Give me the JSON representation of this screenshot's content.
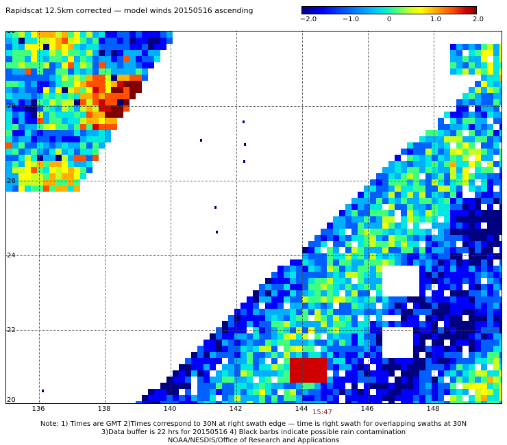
{
  "title": "Rapidscat 12.5km corrected — model winds 20150516 ascending",
  "colorbar": {
    "ticks": [
      "−2.0",
      "−1.0",
      "0",
      "1.0",
      "2.0"
    ],
    "range": [
      -2.0,
      2.0
    ]
  },
  "map": {
    "lon_range": [
      135,
      150
    ],
    "lat_range": [
      20,
      30
    ],
    "lat_labels": [
      "30",
      "28",
      "26",
      "24",
      "22",
      "20"
    ],
    "lon_labels": [
      "136",
      "138",
      "140",
      "142",
      "144",
      "146",
      "148"
    ],
    "grid": true
  },
  "time_label": "15:47",
  "notes": {
    "line1": "Note: 1) Times are GMT 2)Times correspond to 30N at right swath edge — time is right swath for overlapping swaths at 30N",
    "line2": "3)Data buffer is 22 hrs for 20150516 4) Black barbs indicate possible rain contamination",
    "line3": "NOAA/NESDIS/Office of Research and Applications"
  }
}
